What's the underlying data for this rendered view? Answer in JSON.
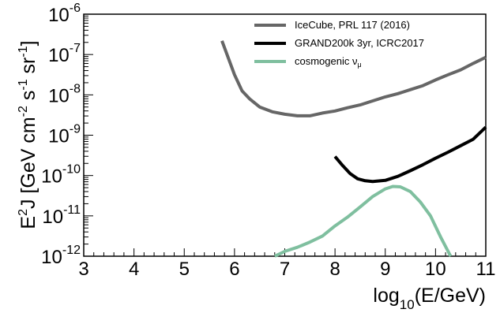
{
  "chart_data": {
    "type": "line",
    "title": "",
    "xlabel": {
      "base": "log",
      "sub": "10",
      "rest": "(E/GeV)"
    },
    "ylabel": {
      "e": "E",
      "e_sup": "2",
      "j": "J [GeV cm",
      "cm_sup": "-2",
      "s": " s",
      "s_sup": "-1",
      "sr": " sr",
      "sr_sup": "-1",
      "end": "]"
    },
    "xlim": [
      3,
      11
    ],
    "ylim_log10": [
      -12,
      -6
    ],
    "y_scale": "log",
    "grid": false,
    "legend_position": "top-right",
    "x_ticks": [
      {
        "value": 3,
        "label": "3"
      },
      {
        "value": 4,
        "label": "4"
      },
      {
        "value": 5,
        "label": "5"
      },
      {
        "value": 6,
        "label": "6"
      },
      {
        "value": 7,
        "label": "7"
      },
      {
        "value": 8,
        "label": "8"
      },
      {
        "value": 9,
        "label": "9"
      },
      {
        "value": 10,
        "label": "10"
      },
      {
        "value": 11,
        "label": "11"
      }
    ],
    "y_ticks": [
      {
        "exp": -12,
        "base": "10",
        "sup": "-12"
      },
      {
        "exp": -11,
        "base": "10",
        "sup": "-11"
      },
      {
        "exp": -10,
        "base": "10",
        "sup": "-10"
      },
      {
        "exp": -9,
        "base": "10",
        "sup": "-9"
      },
      {
        "exp": -8,
        "base": "10",
        "sup": "-8"
      },
      {
        "exp": -7,
        "base": "10",
        "sup": "-7"
      },
      {
        "exp": -6,
        "base": "10",
        "sup": "-6"
      }
    ],
    "series": [
      {
        "name": "IceCube, PRL 117 (2016)",
        "color": "#666666",
        "x": [
          5.75,
          6.0,
          6.15,
          6.3,
          6.5,
          6.75,
          7.0,
          7.25,
          7.5,
          7.75,
          8.0,
          8.25,
          8.5,
          8.75,
          9.0,
          9.25,
          9.5,
          9.75,
          10.0,
          10.25,
          10.5,
          10.75,
          11.0
        ],
        "y_log10": [
          -6.66,
          -7.5,
          -7.9,
          -8.1,
          -8.3,
          -8.42,
          -8.48,
          -8.52,
          -8.52,
          -8.45,
          -8.4,
          -8.32,
          -8.25,
          -8.15,
          -8.05,
          -7.97,
          -7.87,
          -7.77,
          -7.63,
          -7.5,
          -7.38,
          -7.22,
          -7.07
        ]
      },
      {
        "name": "GRAND200k 3yr, ICRC2017",
        "color": "#000000",
        "x": [
          8.0,
          8.15,
          8.3,
          8.45,
          8.6,
          8.75,
          9.0,
          9.25,
          9.5,
          9.75,
          10.0,
          10.25,
          10.5,
          10.75,
          11.0
        ],
        "y_log10": [
          -9.53,
          -9.75,
          -9.95,
          -10.08,
          -10.13,
          -10.15,
          -10.12,
          -10.02,
          -9.88,
          -9.73,
          -9.57,
          -9.42,
          -9.26,
          -9.1,
          -8.8
        ]
      },
      {
        "name": "cosmogenic",
        "name_sub": "μ",
        "name_greek": "ν",
        "color": "#7fbf9f",
        "x": [
          6.8,
          7.0,
          7.25,
          7.5,
          7.75,
          8.0,
          8.25,
          8.5,
          8.75,
          9.0,
          9.15,
          9.3,
          9.5,
          9.7,
          9.9,
          10.1,
          10.3
        ],
        "y_log10": [
          -12.0,
          -11.88,
          -11.78,
          -11.65,
          -11.5,
          -11.25,
          -11.03,
          -10.78,
          -10.52,
          -10.33,
          -10.27,
          -10.28,
          -10.4,
          -10.66,
          -11.0,
          -11.52,
          -12.0
        ]
      }
    ]
  }
}
